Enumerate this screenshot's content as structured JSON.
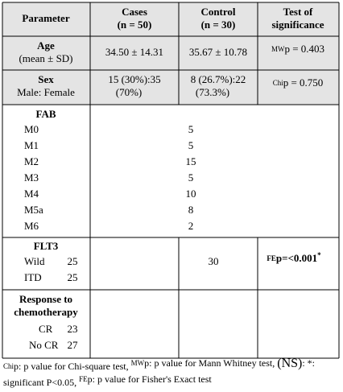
{
  "table": {
    "header": {
      "parameter": "Parameter",
      "cases": [
        "Cases",
        "(n = 50)"
      ],
      "control": [
        "Control",
        "(n = 30)"
      ],
      "test": [
        "Test of",
        "significance"
      ]
    },
    "age": {
      "label": "Age",
      "sublabel": "(mean ± SD)",
      "cases": "34.50 ± 14.31",
      "control": "35.67 ± 10.78",
      "test": {
        "sup": "MW",
        "text": "p = 0.403"
      }
    },
    "sex": {
      "label": "Sex",
      "sublabel": "Male: Female",
      "cases": [
        "15 (30%):35",
        "(70%)"
      ],
      "control": [
        "8 (26.7%):22",
        "(73.3%)"
      ],
      "test": {
        "sup": "Chi",
        "text": "p = 0.750"
      }
    },
    "fab": {
      "label": "FAB",
      "rows": [
        {
          "label": "M0",
          "value": "5"
        },
        {
          "label": "M1",
          "value": "5"
        },
        {
          "label": "M2",
          "value": "15"
        },
        {
          "label": "M3",
          "value": "5"
        },
        {
          "label": "M4",
          "value": "10"
        },
        {
          "label": "M5a",
          "value": "8"
        },
        {
          "label": "M6",
          "value": "2"
        }
      ]
    },
    "flt3": {
      "label": "FLT3",
      "rows": [
        {
          "label": "Wild",
          "cases": "25"
        },
        {
          "label": "ITD",
          "cases": "25"
        }
      ],
      "control": "30",
      "test": {
        "sup": "FE",
        "text": "p=<0.001",
        "mark": "*"
      }
    },
    "response": {
      "label": [
        "Response to",
        "chemotherapy"
      ],
      "rows": [
        {
          "label": "CR",
          "cases": "23"
        },
        {
          "label": "No   CR",
          "cases": "27"
        }
      ]
    }
  },
  "footnote": [
    [
      {
        "sup": "Chi"
      },
      {
        "text": "p: p value for Chi-square test, "
      },
      {
        "sup": "MW"
      },
      {
        "text": "p: p value for Mann Whitney test, "
      },
      {
        "big": "(NS)"
      },
      {
        "text": ": *:"
      }
    ],
    [
      {
        "text": "significant P<0.05, "
      },
      {
        "sup": "FE"
      },
      {
        "text": "p: p value for Fisher's  Exact test"
      }
    ]
  ]
}
